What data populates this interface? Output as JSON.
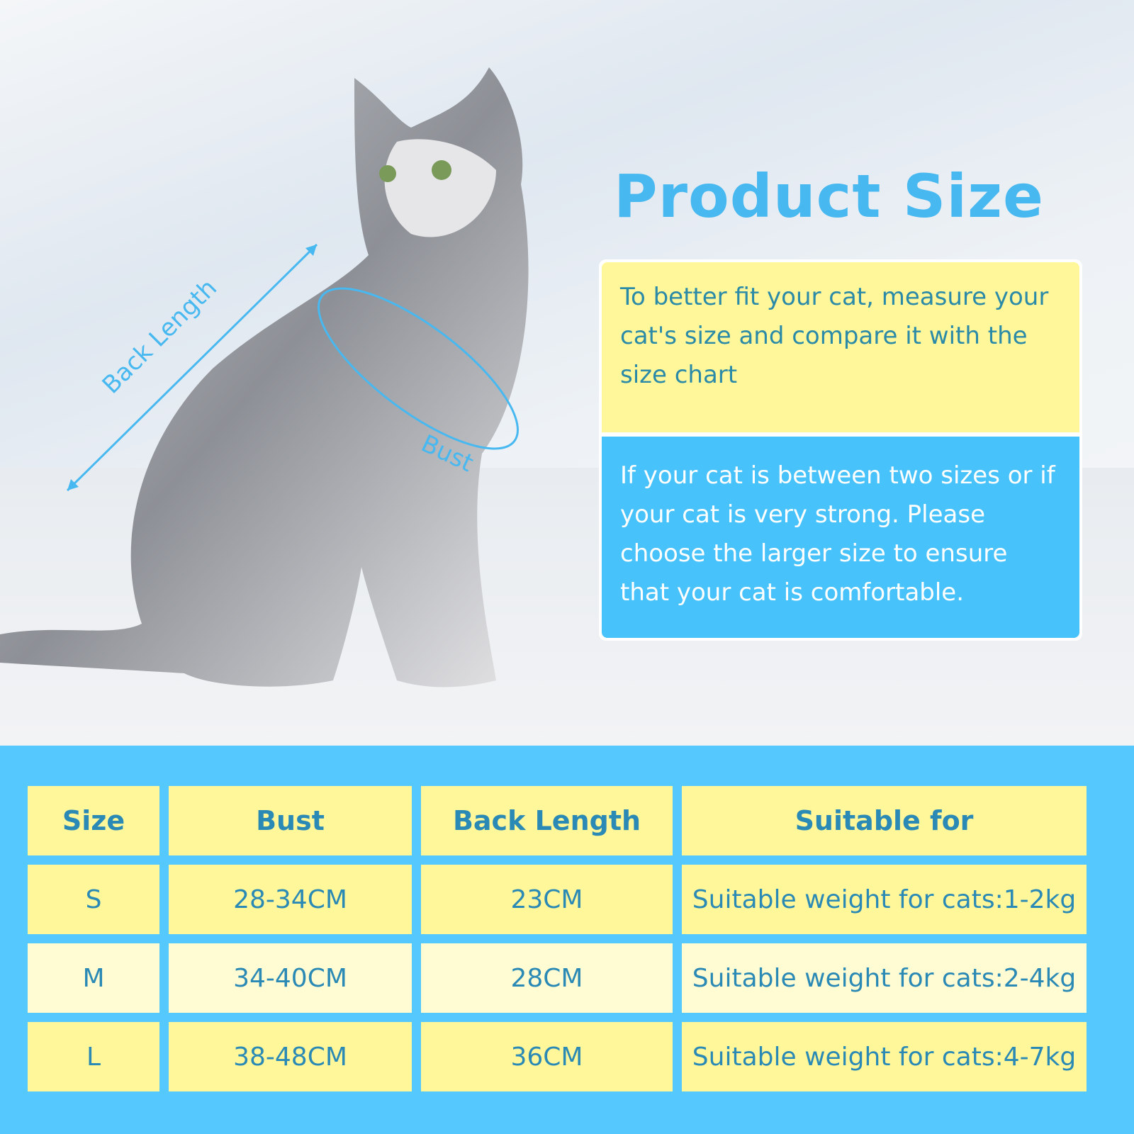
{
  "title": "Product Size",
  "annotations": {
    "back_length": "Back Length",
    "bust": "Bust"
  },
  "info": {
    "tip": "To better fit your cat, measure your cat's size and compare it with the size chart",
    "advice": "If your cat is between two sizes or if your cat is very strong. Please choose the larger size to ensure that your cat is comfortable."
  },
  "table": {
    "headers": [
      "Size",
      "Bust",
      "Back Length",
      "Suitable for"
    ],
    "rows": [
      [
        "S",
        "28-34CM",
        "23CM",
        "Suitable weight for cats:1-2kg"
      ],
      [
        "M",
        "34-40CM",
        "28CM",
        "Suitable weight for cats:2-4kg"
      ],
      [
        "L",
        "38-48CM",
        "36CM",
        "Suitable weight for cats:4-7kg"
      ]
    ]
  },
  "colors": {
    "accent": "#48b8f0",
    "yellow": "#fff799",
    "blue": "#47c2fb",
    "text": "#2b8ab5"
  }
}
